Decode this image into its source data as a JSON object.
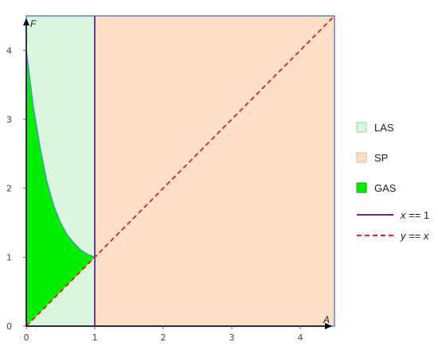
{
  "chart_data": {
    "type": "area",
    "xlabel": "A",
    "ylabel": "F",
    "xlim": [
      0,
      4.5
    ],
    "ylim": [
      0,
      4.5
    ],
    "x_ticks": [
      "0",
      "1",
      "2",
      "3",
      "4"
    ],
    "y_ticks": [
      "0",
      "1",
      "2",
      "3",
      "4"
    ],
    "regions": [
      {
        "name": "LAS",
        "color": "#d9f7dc",
        "x_range": [
          0,
          1
        ],
        "y_range": [
          0,
          4.5
        ]
      },
      {
        "name": "SP",
        "color": "#fbdfc6",
        "x_range": [
          1,
          4.5
        ],
        "y_range": [
          0,
          4.5
        ]
      },
      {
        "name": "GAS",
        "color": "#00ee00",
        "lower_boundary": "y = x",
        "upper_boundary_points": [
          [
            0,
            4.0
          ],
          [
            0.1,
            3.2
          ],
          [
            0.2,
            2.6
          ],
          [
            0.3,
            2.1
          ],
          [
            0.4,
            1.75
          ],
          [
            0.5,
            1.5
          ],
          [
            0.6,
            1.32
          ],
          [
            0.7,
            1.2
          ],
          [
            0.8,
            1.1
          ],
          [
            0.9,
            1.04
          ],
          [
            1.0,
            1.0
          ]
        ]
      }
    ],
    "lines": [
      {
        "name": "x == 1",
        "color": "#7a1f8c",
        "style": "solid"
      },
      {
        "name": "y == x",
        "color": "#e0201a",
        "style": "dashed"
      }
    ],
    "legend": {
      "position": "right",
      "entries": [
        {
          "label": "LAS",
          "kind": "swatch",
          "color": "#d9f7dc",
          "border": "#8fd99a"
        },
        {
          "label": "SP",
          "kind": "swatch",
          "color": "#fbdfc6",
          "border": "#e6b78c"
        },
        {
          "label": "GAS",
          "kind": "swatch",
          "color": "#00ee00",
          "border": "#00aa00"
        },
        {
          "label": "x == 1",
          "kind": "line",
          "color": "#7a1f8c",
          "dash": false,
          "italic_var": "x",
          "rest": " == 1"
        },
        {
          "label": "y == x",
          "kind": "line",
          "color": "#e0201a",
          "dash": true,
          "italic_var": "y",
          "rest": " == x"
        }
      ]
    }
  }
}
